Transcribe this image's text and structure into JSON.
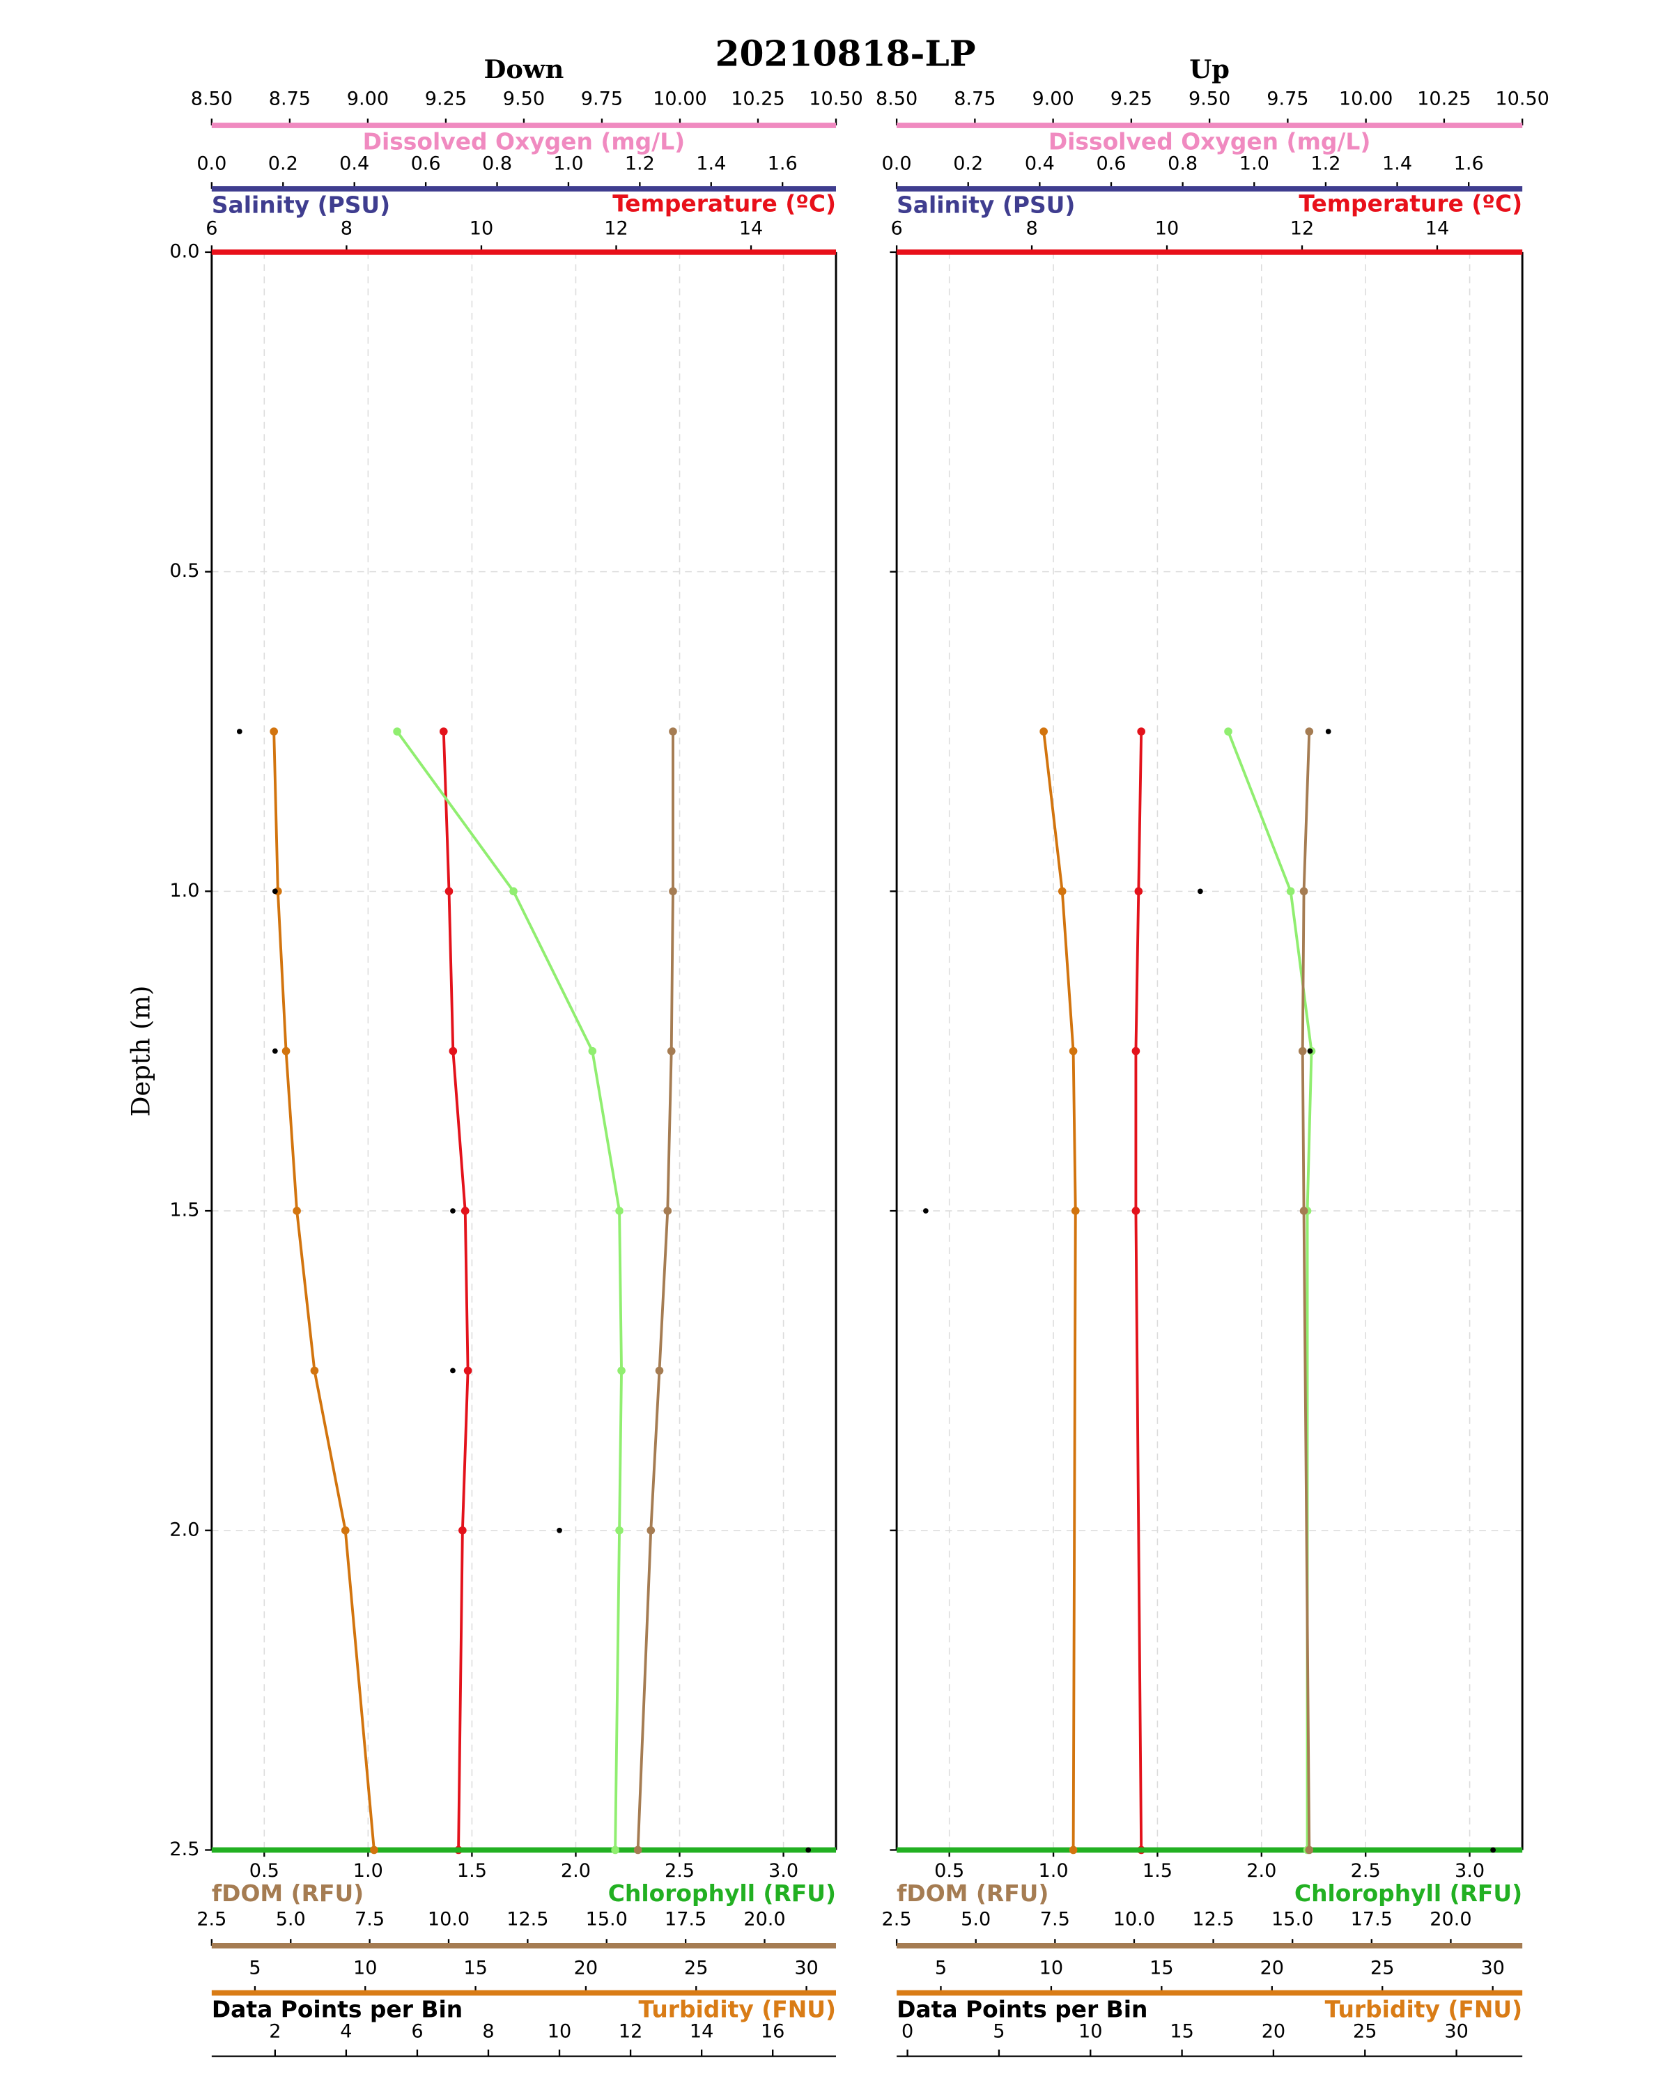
{
  "title": "20210818-LP",
  "chart_data": [
    {
      "type": "line",
      "title": "Down",
      "ylabel": "Depth (m)",
      "ylim": [
        0,
        2.5
      ],
      "yticks": [
        {
          "value": 0,
          "label": "0.0"
        },
        0.5,
        {
          "value": 1,
          "label": "1.0"
        },
        1.5,
        {
          "value": 2,
          "label": "2.0"
        },
        2.5
      ],
      "show_ytick_labels": true,
      "grid": true,
      "y": [
        0.75,
        1.0,
        1.25,
        1.5,
        1.75,
        2.0,
        2.5
      ],
      "axes": [
        {
          "name": "Dissolved Oxygen (mg/L)",
          "color": "#f08ac0",
          "lim": [
            8.5,
            10.5
          ],
          "ticks": [
            {
              "value": 8.5,
              "label": "8.50"
            },
            {
              "value": 8.75,
              "label": "8.75"
            },
            {
              "value": 9,
              "label": "9.00"
            },
            {
              "value": 9.25,
              "label": "9.25"
            },
            {
              "value": 9.5,
              "label": "9.50"
            },
            {
              "value": 9.75,
              "label": "9.75"
            },
            {
              "value": 10,
              "label": "10.00"
            },
            {
              "value": 10.25,
              "label": "10.25"
            },
            {
              "value": 10.5,
              "label": "10.50"
            }
          ]
        },
        {
          "name": "Salinity (PSU)",
          "color": "#3f3d8f",
          "lim": [
            0,
            1.75
          ],
          "ticks": [
            {
              "value": 0,
              "label": "0.0"
            },
            0.2,
            0.4,
            0.6,
            0.8,
            {
              "value": 1,
              "label": "1.0"
            },
            1.2,
            1.4,
            1.6
          ]
        },
        {
          "name": "Temperature (ºC)",
          "color": "#e8101a",
          "lim": [
            6,
            15.26
          ],
          "ticks": [
            6,
            8,
            10,
            12,
            14
          ],
          "style": "line",
          "line_color": "#e3121b",
          "values": [
            9.44,
            9.52,
            9.58,
            9.76,
            9.8,
            9.72,
            9.66
          ]
        },
        {
          "name": "Chlorophyll (RFU)",
          "color": "#22b022",
          "lim": [
            0.247,
            3.253
          ],
          "grid": true,
          "ticks": [
            0.5,
            {
              "value": 1,
              "label": "1.0"
            },
            1.5,
            {
              "value": 2,
              "label": "2.0"
            },
            2.5,
            {
              "value": 3,
              "label": "3.0"
            }
          ],
          "style": "line",
          "line_color": "#90ee70",
          "values": [
            1.14,
            1.7,
            2.08,
            2.21,
            2.22,
            2.21,
            2.19
          ]
        },
        {
          "name": "fDOM (RFU)",
          "color": "#a57c52",
          "lim": [
            2.5,
            22.26
          ],
          "ticks": [
            2.5,
            {
              "value": 5,
              "label": "5.0"
            },
            7.5,
            {
              "value": 10,
              "label": "10.0"
            },
            12.5,
            {
              "value": 15,
              "label": "15.0"
            },
            17.5,
            {
              "value": 20,
              "label": "20.0"
            }
          ],
          "style": "line",
          "line_color": "#a57c52",
          "values": [
            17.1,
            17.1,
            17.05,
            16.93,
            16.67,
            16.4,
            15.99
          ]
        },
        {
          "name": "Turbidity (FNU)",
          "color": "#d97c16",
          "lim": [
            3.04,
            31.34
          ],
          "ticks": [
            5,
            10,
            15,
            20,
            25,
            30
          ],
          "style": "line",
          "line_color": "#d2740e",
          "values": [
            5.86,
            6.04,
            6.41,
            6.9,
            7.7,
            9.1,
            10.4
          ]
        },
        {
          "name": "Data Points per Bin",
          "color": "#000000",
          "lim": [
            0.217,
            17.78
          ],
          "ticks": [
            2,
            4,
            6,
            8,
            10,
            12,
            14,
            16
          ],
          "style": "dots",
          "line_color": "#000000",
          "values": [
            1,
            2,
            2,
            7,
            7,
            10,
            17
          ]
        }
      ]
    },
    {
      "type": "line",
      "title": "Up",
      "ylim": [
        0,
        2.5
      ],
      "yticks": [
        0,
        0.5,
        1,
        1.5,
        2,
        2.5
      ],
      "show_ytick_labels": false,
      "grid": true,
      "y": [
        0.75,
        1.0,
        1.25,
        1.5,
        2.5
      ],
      "axes": [
        {
          "name": "Dissolved Oxygen (mg/L)",
          "color": "#f08ac0",
          "lim": [
            8.5,
            10.5
          ],
          "ticks": [
            {
              "value": 8.5,
              "label": "8.50"
            },
            {
              "value": 8.75,
              "label": "8.75"
            },
            {
              "value": 9,
              "label": "9.00"
            },
            {
              "value": 9.25,
              "label": "9.25"
            },
            {
              "value": 9.5,
              "label": "9.50"
            },
            {
              "value": 9.75,
              "label": "9.75"
            },
            {
              "value": 10,
              "label": "10.00"
            },
            {
              "value": 10.25,
              "label": "10.25"
            },
            {
              "value": 10.5,
              "label": "10.50"
            }
          ]
        },
        {
          "name": "Salinity (PSU)",
          "color": "#3f3d8f",
          "lim": [
            0,
            1.75
          ],
          "ticks": [
            {
              "value": 0,
              "label": "0.0"
            },
            0.2,
            0.4,
            0.6,
            0.8,
            {
              "value": 1,
              "label": "1.0"
            },
            1.2,
            1.4,
            1.6
          ]
        },
        {
          "name": "Temperature (ºC)",
          "color": "#e8101a",
          "lim": [
            6,
            15.26
          ],
          "ticks": [
            6,
            8,
            10,
            12,
            14
          ],
          "style": "line",
          "line_color": "#e3121b",
          "values": [
            9.62,
            9.58,
            9.54,
            9.54,
            9.62
          ]
        },
        {
          "name": "Chlorophyll (RFU)",
          "color": "#22b022",
          "lim": [
            0.247,
            3.253
          ],
          "grid": true,
          "ticks": [
            0.5,
            {
              "value": 1,
              "label": "1.0"
            },
            1.5,
            {
              "value": 2,
              "label": "2.0"
            },
            2.5,
            {
              "value": 3,
              "label": "3.0"
            }
          ],
          "style": "line",
          "line_color": "#90ee70",
          "values": [
            1.84,
            2.14,
            2.24,
            2.22,
            2.22
          ]
        },
        {
          "name": "fDOM (RFU)",
          "color": "#a57c52",
          "lim": [
            2.5,
            22.26
          ],
          "ticks": [
            2.5,
            {
              "value": 5,
              "label": "5.0"
            },
            7.5,
            {
              "value": 10,
              "label": "10.0"
            },
            12.5,
            {
              "value": 15,
              "label": "15.0"
            },
            17.5,
            {
              "value": 20,
              "label": "20.0"
            }
          ],
          "style": "line",
          "line_color": "#a57c52",
          "values": [
            15.53,
            15.36,
            15.32,
            15.36,
            15.53
          ]
        },
        {
          "name": "Turbidity (FNU)",
          "color": "#d97c16",
          "lim": [
            3.0,
            31.34
          ],
          "ticks": [
            5,
            10,
            15,
            20,
            25,
            30
          ],
          "style": "line",
          "line_color": "#d2740e",
          "values": [
            9.66,
            10.5,
            11.0,
            11.1,
            11.0
          ]
        },
        {
          "name": "Data Points per Bin",
          "color": "#000000",
          "lim": [
            -0.59,
            33.6
          ],
          "ticks": [
            0,
            5,
            10,
            15,
            20,
            25,
            30
          ],
          "style": "dots",
          "line_color": "#000000",
          "values": [
            23,
            16,
            22,
            1,
            32
          ]
        }
      ]
    }
  ]
}
